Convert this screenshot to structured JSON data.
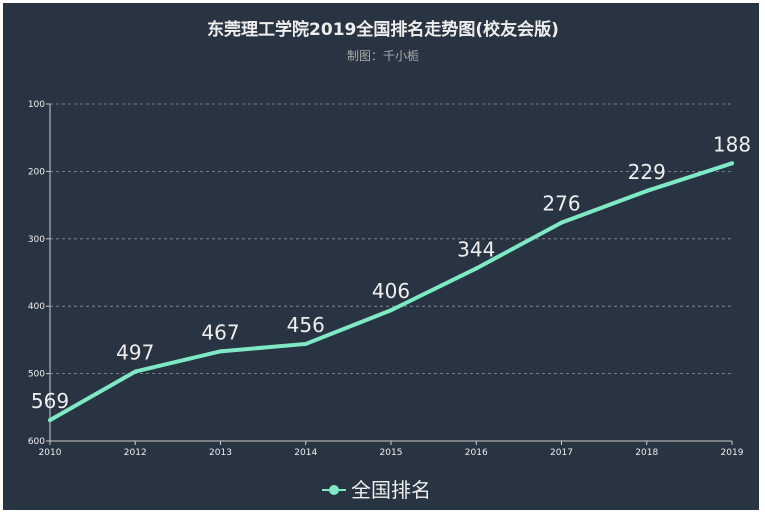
{
  "chart_data": {
    "type": "line",
    "title": "东莞理工学院2019全国排名走势图(校友会版)",
    "subtitle": "制图：千小栀",
    "x": [
      "2010",
      "2012",
      "2013",
      "2014",
      "2015",
      "2016",
      "2017",
      "2018",
      "2019"
    ],
    "series": [
      {
        "name": "全国排名",
        "values": [
          569,
          497,
          467,
          456,
          406,
          344,
          276,
          229,
          188
        ],
        "color": "#7fe8c4"
      }
    ],
    "yticks": [
      "100",
      "200",
      "300",
      "400",
      "500",
      "600"
    ],
    "ylim": [
      100,
      600
    ],
    "y_inverted": true,
    "grid": true,
    "legend": "bottom-center"
  }
}
